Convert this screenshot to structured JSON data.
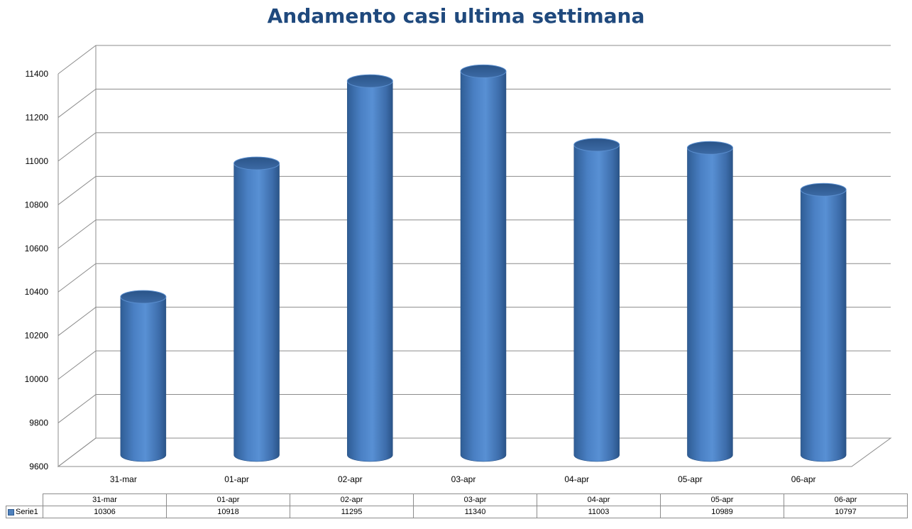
{
  "chart_data": {
    "type": "bar",
    "title": "Andamento casi ultima settimana",
    "categories": [
      "31-mar",
      "01-apr",
      "02-apr",
      "03-apr",
      "04-apr",
      "05-apr",
      "06-apr"
    ],
    "series": [
      {
        "name": "Serie1",
        "values": [
          10306,
          10918,
          11295,
          11340,
          11003,
          10989,
          10797
        ]
      }
    ],
    "ylim": [
      9600,
      11400
    ],
    "yticks": [
      9600,
      9800,
      10000,
      10200,
      10400,
      10600,
      10800,
      11000,
      11200,
      11400
    ],
    "grid": true,
    "data_table": true,
    "color": "#4f81bd"
  }
}
